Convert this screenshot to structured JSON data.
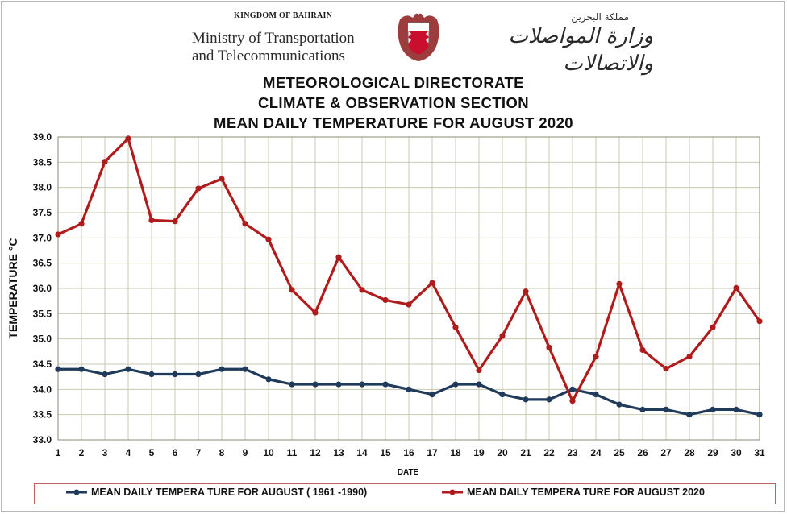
{
  "header": {
    "kingdom": "KINGDOM OF BAHRAIN",
    "ministry_line1": "Ministry of Transportation",
    "ministry_line2": "and Telecommunications",
    "arabic_line1": "مملكة البحرين",
    "arabic_line2": "وزارة المواصلات والاتصالات"
  },
  "chart_data": {
    "type": "line",
    "title_lines": [
      "METEOROLOGICAL DIRECTORATE",
      "CLIMATE & OBSERVATION SECTION",
      "MEAN DAILY TEMPERATURE FOR AUGUST 2020"
    ],
    "xlabel": "DATE",
    "ylabel": "TEMPERATURE °C",
    "x": [
      1,
      2,
      3,
      4,
      5,
      6,
      7,
      8,
      9,
      10,
      11,
      12,
      13,
      14,
      15,
      16,
      17,
      18,
      19,
      20,
      21,
      22,
      23,
      24,
      25,
      26,
      27,
      28,
      29,
      30,
      31
    ],
    "ylim": [
      33.0,
      39.0
    ],
    "yticks": [
      "33.0",
      "33.5",
      "34.0",
      "34.5",
      "35.0",
      "35.5",
      "36.0",
      "36.5",
      "37.0",
      "37.5",
      "38.0",
      "38.5",
      "39.0"
    ],
    "grid": true,
    "legend_position": "bottom",
    "series": [
      {
        "name": "MEAN DAILY TEMPERA TURE FOR AUGUST ( 1961 -1990)",
        "color": "#1f3a5a",
        "values": [
          34.4,
          34.4,
          34.3,
          34.4,
          34.3,
          34.3,
          34.3,
          34.4,
          34.4,
          34.2,
          34.1,
          34.1,
          34.1,
          34.1,
          34.1,
          34.0,
          33.9,
          34.1,
          34.1,
          33.9,
          33.8,
          33.8,
          34.0,
          33.9,
          33.7,
          33.6,
          33.6,
          33.5,
          33.6,
          33.6,
          33.5
        ]
      },
      {
        "name": "MEAN DAILY TEMPERA TURE FOR AUGUST 2020",
        "color": "#b01c1c",
        "values": [
          37.07,
          37.28,
          38.51,
          38.97,
          37.35,
          37.33,
          37.98,
          38.17,
          37.28,
          36.97,
          35.97,
          35.52,
          36.62,
          35.97,
          35.77,
          35.68,
          36.11,
          35.23,
          34.38,
          35.06,
          35.94,
          34.83,
          33.77,
          34.65,
          36.09,
          34.78,
          34.41,
          34.65,
          35.23,
          36.01,
          35.35
        ]
      }
    ]
  }
}
